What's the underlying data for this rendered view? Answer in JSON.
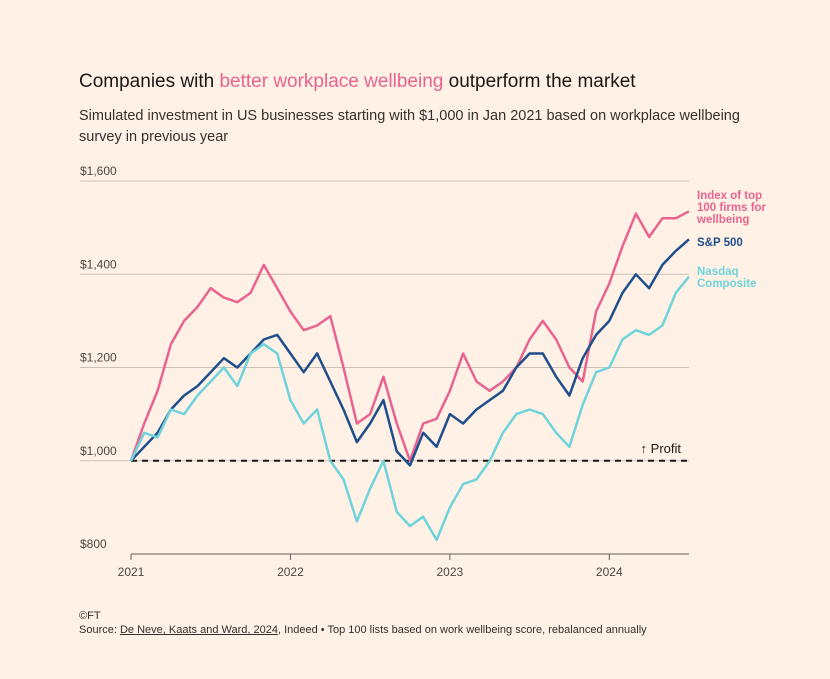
{
  "chart_data": {
    "type": "line",
    "title": {
      "before": "Companies with",
      "highlight": "better workplace wellbeing",
      "after": "outperform the market"
    },
    "subtitle": "Simulated investment in US businesses starting with $1,000 in Jan 2021 based on workplace wellbeing survey in previous year",
    "x": [
      2021,
      2021.083,
      2021.167,
      2021.25,
      2021.333,
      2021.417,
      2021.5,
      2021.583,
      2021.667,
      2021.75,
      2021.833,
      2021.917,
      2022,
      2022.083,
      2022.167,
      2022.25,
      2022.333,
      2022.417,
      2022.5,
      2022.583,
      2022.667,
      2022.75,
      2022.833,
      2022.917,
      2023,
      2023.083,
      2023.167,
      2023.25,
      2023.333,
      2023.417,
      2023.5,
      2023.583,
      2023.667,
      2023.75,
      2023.833,
      2023.917,
      2024,
      2024.083,
      2024.167,
      2024.25,
      2024.333,
      2024.417,
      2024.5
    ],
    "series": [
      {
        "name": "Index of top 100 firms for wellbeing",
        "color": "#e8648f",
        "values": [
          1000,
          1080,
          1150,
          1250,
          1300,
          1330,
          1370,
          1350,
          1340,
          1360,
          1420,
          1370,
          1320,
          1280,
          1290,
          1310,
          1200,
          1080,
          1100,
          1180,
          1080,
          1000,
          1080,
          1090,
          1150,
          1230,
          1170,
          1150,
          1170,
          1200,
          1260,
          1300,
          1260,
          1200,
          1170,
          1320,
          1380,
          1460,
          1530,
          1480,
          1520,
          1520,
          1535
        ]
      },
      {
        "name": "S&P 500",
        "color": "#1f4e8c",
        "values": [
          1000,
          1030,
          1060,
          1110,
          1140,
          1160,
          1190,
          1220,
          1200,
          1230,
          1260,
          1270,
          1230,
          1190,
          1230,
          1170,
          1110,
          1040,
          1080,
          1130,
          1020,
          990,
          1060,
          1030,
          1100,
          1080,
          1110,
          1130,
          1150,
          1200,
          1230,
          1230,
          1180,
          1140,
          1220,
          1270,
          1300,
          1360,
          1400,
          1370,
          1420,
          1450,
          1475
        ]
      },
      {
        "name": "Nasdaq Composite",
        "color": "#6fd3dc",
        "values": [
          1000,
          1060,
          1050,
          1110,
          1100,
          1140,
          1170,
          1200,
          1160,
          1230,
          1250,
          1230,
          1130,
          1080,
          1110,
          1000,
          960,
          870,
          940,
          1000,
          890,
          860,
          880,
          830,
          900,
          950,
          960,
          1000,
          1060,
          1100,
          1110,
          1100,
          1060,
          1030,
          1120,
          1190,
          1200,
          1260,
          1280,
          1270,
          1290,
          1360,
          1395
        ]
      }
    ],
    "xlim": [
      2021,
      2024.5
    ],
    "xticks": [
      2021,
      2022,
      2023,
      2024
    ],
    "ylim": [
      800,
      1600
    ],
    "yticks": [
      {
        "value": 800,
        "label": "$800"
      },
      {
        "value": 1000,
        "label": "$1,000"
      },
      {
        "value": 1200,
        "label": "$1,200"
      },
      {
        "value": 1400,
        "label": "$1,400"
      },
      {
        "value": 1600,
        "label": "$1,600"
      }
    ],
    "grid": true,
    "reference_line": {
      "value": 1000,
      "label": "↑ Profit"
    },
    "copyright": "©FT",
    "source": {
      "prefix": "Source:",
      "link": "De Neve, Kaats and Ward, 2024",
      "rest": ", Indeed • Top 100 lists based on work wellbeing score, rebalanced annually"
    }
  }
}
